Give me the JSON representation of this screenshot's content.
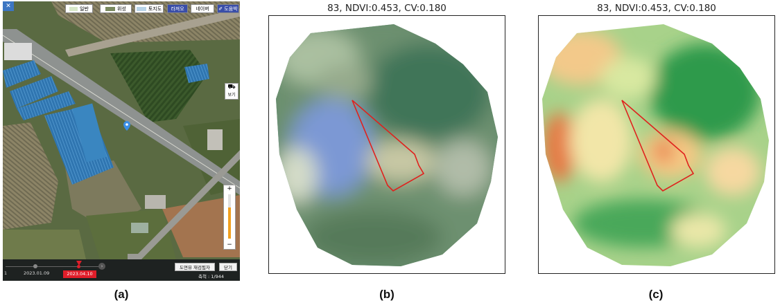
{
  "panel_a": {
    "toolbar": {
      "menu_icon": "menu-icon",
      "layer_normal": "일반",
      "layer_satellite": "위성",
      "layer_landuse": "토지도",
      "btn_radio": "라져오",
      "btn_naver": "네이버",
      "btn_draw": "✐ 도움박"
    },
    "side": {
      "streetview_label": "보기"
    },
    "zoom": {
      "plus": "+",
      "minus": "−",
      "level": 0.7
    },
    "timeline": {
      "start_label": "1",
      "date_prev": "2023.01.09",
      "date_selected": "2023.04.10",
      "btn_history": "도면뷰 재검됨자",
      "btn_close": "닫기",
      "scale": "축척 : 1/944"
    },
    "caption": "(a)"
  },
  "panel_b": {
    "title": "83, NDVI:0.453, CV:0.180",
    "caption": "(b)"
  },
  "panel_c": {
    "title": "83, NDVI:0.453, CV:0.180",
    "caption": "(c)"
  },
  "colors": {
    "parcel_outline": "#e0211d",
    "timeline_selected": "#e01e2a",
    "map_roof_blue": "#2f75b0"
  }
}
